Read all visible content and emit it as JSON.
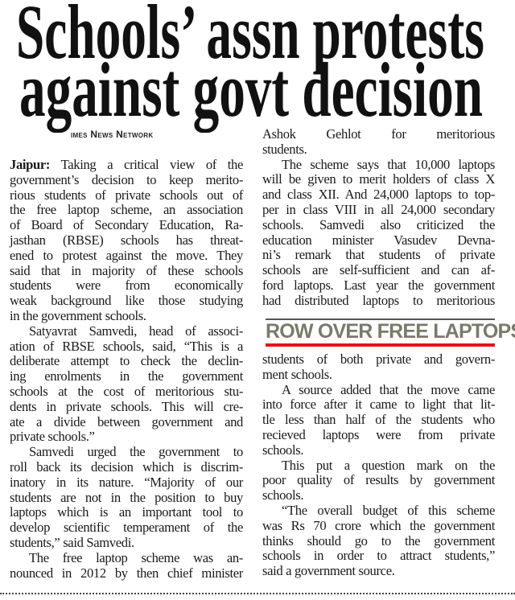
{
  "headline": {
    "line1": "Schools’ assn protests",
    "line2": "against govt decision"
  },
  "byline": "imes News Network",
  "sidebar_box": {
    "title": "ROW OVER FREE LAPTOPS",
    "accent_color": "#e8111a",
    "title_color": "#7a7a6c"
  },
  "article": {
    "lead": "Jaipur:",
    "left_column": [
      {
        "text": " Taking a critical view of the",
        "lead": true
      },
      {
        "text": "government’s decision to keep merito-"
      },
      {
        "text": "rious students of private schools out of"
      },
      {
        "text": "the free laptop scheme, an association"
      },
      {
        "text": "of Board of Secondary Education, Ra-"
      },
      {
        "text": "jasthan (RBSE) schools has threat-"
      },
      {
        "text": "ened to protest against the move. They"
      },
      {
        "text": "said that in majority of these schools"
      },
      {
        "text": "students were from economically"
      },
      {
        "text": "weak background like those studying"
      },
      {
        "text": "in the government schools.",
        "last": true
      },
      {
        "text": "Satyavrat Samvedi, head of associ-",
        "indent": true
      },
      {
        "text": "ation of RBSE schools, said, “This is a"
      },
      {
        "text": "deliberate attempt to check the declin-"
      },
      {
        "text": "ing enrolments in the government"
      },
      {
        "text": "schools at the cost of meritorious stu-"
      },
      {
        "text": "dents in private schools. This will cre-"
      },
      {
        "text": "ate a divide between government and"
      },
      {
        "text": "private schools.”",
        "last": true
      },
      {
        "text": "Samvedi urged the government to",
        "indent": true
      },
      {
        "text": "roll back its decision which is discrim-"
      },
      {
        "text": "inatory in its nature. “Majority of our"
      },
      {
        "text": "students are not in the position to buy"
      },
      {
        "text": "laptops which is an important tool to"
      },
      {
        "text": "develop scientific temperament of the"
      },
      {
        "text": "students,” said Samvedi.",
        "last": true
      },
      {
        "text": "The free laptop scheme was an-",
        "indent": true
      },
      {
        "text": "nounced in 2012 by then chief minister"
      }
    ],
    "right_column_top": [
      {
        "text": "Ashok Gehlot for meritorious"
      },
      {
        "text": "students.",
        "last": true
      },
      {
        "text": "The scheme says that 10,000 laptops",
        "indent": true
      },
      {
        "text": "will be given to merit holders of class X"
      },
      {
        "text": "and class XII. And 24,000 laptops to top-"
      },
      {
        "text": "per in class VIII in all 24,000 secondary"
      },
      {
        "text": "schools. Samvedi also criticized the"
      },
      {
        "text": "education minister Vasudev Devna-"
      },
      {
        "text": "ni’s remark that students of private"
      },
      {
        "text": "schools are self-sufficient and can af-"
      },
      {
        "text": "ford laptops. Last year the government"
      },
      {
        "text": "had distributed laptops to meritorious"
      }
    ],
    "right_column_bottom": [
      {
        "text": "students of both private and govern-"
      },
      {
        "text": "ment schools.",
        "last": true
      },
      {
        "text": "A source added that the move came",
        "indent": true
      },
      {
        "text": "into force after it came to light that lit-"
      },
      {
        "text": "tle less than half of the students who"
      },
      {
        "text": "recieved laptops were from private"
      },
      {
        "text": "schools.",
        "last": true
      },
      {
        "text": "This put a question mark on the",
        "indent": true
      },
      {
        "text": "poor quality of results by government"
      },
      {
        "text": "schools.",
        "last": true
      },
      {
        "text": "“The overall budget of this scheme",
        "indent": true
      },
      {
        "text": "was Rs 70 crore which the government"
      },
      {
        "text": "thinks should go to the government"
      },
      {
        "text": "schools in order to attract students,”"
      },
      {
        "text": "said a government source.",
        "last": true
      }
    ]
  }
}
